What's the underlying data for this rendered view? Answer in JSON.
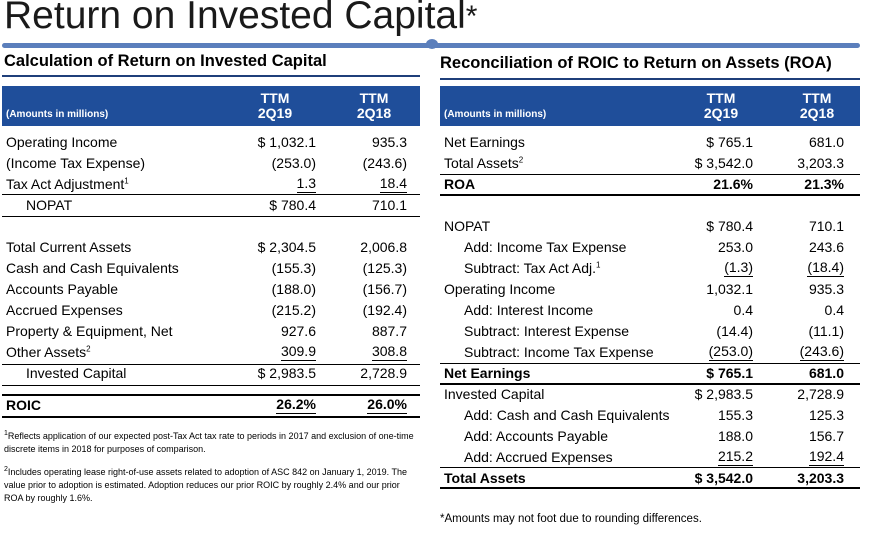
{
  "page": {
    "title": "Return on Invested Capital",
    "title_mark": "*",
    "accent_color": "#1f4e9a"
  },
  "left": {
    "section_title": "Calculation of Return on Invested Capital",
    "header": {
      "label": "(Amounts in millions)",
      "col1": [
        "TTM",
        "2Q19"
      ],
      "col2": [
        "TTM",
        "2Q18"
      ]
    },
    "rows": [
      {
        "label": "Operating Income",
        "sup": "",
        "v1": "$ 1,032.1",
        "v2": "935.3"
      },
      {
        "label": "(Income Tax Expense)",
        "sup": "",
        "v1": "(253.0)",
        "v2": "(243.6)"
      },
      {
        "label": "Tax Act Adjustment",
        "sup": "1",
        "v1": "1.3",
        "v2": "18.4"
      },
      {
        "label": "NOPAT",
        "sup": "",
        "v1": "$    780.4",
        "v2": "710.1"
      },
      {
        "label": "Total Current Assets",
        "sup": "",
        "v1": "$ 2,304.5",
        "v2": "2,006.8"
      },
      {
        "label": "Cash and Cash Equivalents",
        "sup": "",
        "v1": "(155.3)",
        "v2": "(125.3)"
      },
      {
        "label": "Accounts Payable",
        "sup": "",
        "v1": "(188.0)",
        "v2": "(156.7)"
      },
      {
        "label": "Accrued Expenses",
        "sup": "",
        "v1": "(215.2)",
        "v2": "(192.4)"
      },
      {
        "label": "Property & Equipment, Net",
        "sup": "",
        "v1": "927.6",
        "v2": "887.7"
      },
      {
        "label": "Other Assets",
        "sup": "2",
        "v1": "309.9",
        "v2": "308.8"
      },
      {
        "label": "Invested Capital",
        "sup": "",
        "v1": "$ 2,983.5",
        "v2": "2,728.9"
      },
      {
        "label": "ROIC",
        "sup": "",
        "v1": "26.2%",
        "v2": "26.0%"
      }
    ],
    "footnotes": [
      {
        "num": "1",
        "text": "Reflects application of our expected post-Tax Act tax rate to periods in 2017 and exclusion of one-time discrete items in 2018 for purposes of comparison."
      },
      {
        "num": "2",
        "text": "Includes operating lease right-of-use assets related to adoption of ASC 842 on January 1, 2019. The value prior to adoption is estimated.  Adoption reduces our prior ROIC by roughly 2.4% and our prior ROA by roughly 1.6%."
      }
    ]
  },
  "right": {
    "section_title": "Reconciliation of ROIC to Return on Assets (ROA)",
    "header": {
      "label": "(Amounts in millions)",
      "col1": [
        "TTM",
        "2Q19"
      ],
      "col2": [
        "TTM",
        "2Q18"
      ]
    },
    "rows": [
      {
        "label": "Net Earnings",
        "sup": "",
        "v1": "$    765.1",
        "v2": "681.0"
      },
      {
        "label": "Total Assets",
        "sup": "2",
        "v1": "$ 3,542.0",
        "v2": "3,203.3"
      },
      {
        "label": "ROA",
        "sup": "",
        "v1": "21.6%",
        "v2": "21.3%"
      },
      {
        "label": "NOPAT",
        "sup": "",
        "v1": "$    780.4",
        "v2": "710.1"
      },
      {
        "label": "Add: Income Tax Expense",
        "sup": "",
        "v1": "253.0",
        "v2": "243.6"
      },
      {
        "label": "Subtract: Tax Act Adj.",
        "sup": "1",
        "v1": "(1.3)",
        "v2": "(18.4)"
      },
      {
        "label": "Operating Income",
        "sup": "",
        "v1": "1,032.1",
        "v2": "935.3"
      },
      {
        "label": "Add: Interest Income",
        "sup": "",
        "v1": "0.4",
        "v2": "0.4"
      },
      {
        "label": "Subtract: Interest Expense",
        "sup": "",
        "v1": "(14.4)",
        "v2": "(11.1)"
      },
      {
        "label": "Subtract: Income Tax Expense",
        "sup": "",
        "v1": "(253.0)",
        "v2": "(243.6)"
      },
      {
        "label": "Net Earnings",
        "sup": "",
        "v1": "$    765.1",
        "v2": "681.0"
      },
      {
        "label": "Invested Capital",
        "sup": "",
        "v1": "$ 2,983.5",
        "v2": "2,728.9"
      },
      {
        "label": "Add: Cash and Cash Equivalents",
        "sup": "",
        "v1": "155.3",
        "v2": "125.3"
      },
      {
        "label": "Add: Accounts Payable",
        "sup": "",
        "v1": "188.0",
        "v2": "156.7"
      },
      {
        "label": "Add: Accrued Expenses",
        "sup": "",
        "v1": "215.2",
        "v2": "192.4"
      },
      {
        "label": "Total Assets",
        "sup": "",
        "v1": "$ 3,542.0",
        "v2": "3,203.3"
      }
    ],
    "note": "*Amounts may not foot due to rounding differences."
  }
}
